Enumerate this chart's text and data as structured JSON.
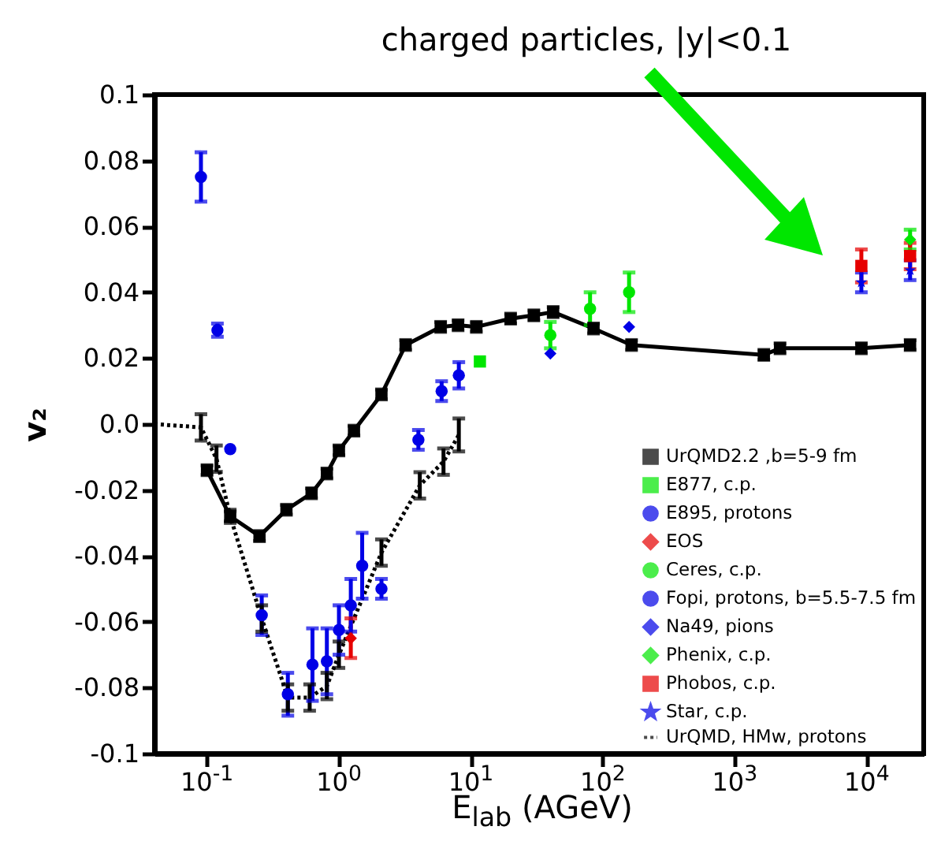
{
  "chart_data": {
    "type": "scatter",
    "title": "charged particles, |y|<0.1",
    "xlabel": "E$_{lab}$ (AGeV)",
    "ylabel": "v₂",
    "log": "x",
    "xlim": [
      0.04,
      27000
    ],
    "ylim": [
      -0.1,
      0.1
    ],
    "xticks": [
      {
        "value": 0.1,
        "label": "10$^{-1}$"
      },
      {
        "value": 1,
        "label": "10$^{0}$"
      },
      {
        "value": 10,
        "label": "10$^{1}$"
      },
      {
        "value": 100,
        "label": "10$^{2}$"
      },
      {
        "value": 1000,
        "label": "10$^{3}$"
      },
      {
        "value": 10000,
        "label": "10$^{4}$"
      }
    ],
    "yticks": [
      -0.1,
      -0.08,
      -0.06,
      -0.04,
      -0.02,
      {
        "value": 0,
        "label": "0.0"
      },
      0.02,
      0.04,
      0.06,
      0.08,
      0.1
    ],
    "legend": "bottom right",
    "series": [
      {
        "name": "UrQMD2.2 ,b=5-9 fm",
        "type": "line",
        "line_style": "solid",
        "marker": "square",
        "color": "#000000",
        "x": [
          0.1,
          0.15,
          0.25,
          0.4,
          0.62,
          0.81,
          1.0,
          1.3,
          2.1,
          3.2,
          5.9,
          8,
          11,
          20,
          30,
          42,
          85,
          165,
          1660,
          2200,
          9100,
          21300
        ],
        "values": [
          -0.014,
          -0.028,
          -0.034,
          -0.026,
          -0.021,
          -0.015,
          -0.008,
          -0.002,
          0.009,
          0.024,
          0.0295,
          0.03,
          0.0295,
          0.032,
          0.033,
          0.034,
          0.029,
          0.024,
          0.021,
          0.023,
          0.023,
          0.024
        ],
        "errors": [
          0.0015,
          0.0015,
          0.0015,
          0.0015,
          0.0015,
          0.0015,
          0.0015,
          0.0015,
          0.0015,
          0.0015,
          0.0015,
          0.0015,
          0.0015,
          0.0015,
          0.0015,
          0.0015,
          0.0015,
          0.0015,
          0.0015,
          0.0015,
          0.0015,
          0.0015
        ]
      },
      {
        "name": "E877, c.p.",
        "marker": "square",
        "color": "#00e600",
        "x": [
          11.7
        ],
        "values": [
          0.019
        ]
      },
      {
        "name": "E895, protons",
        "marker": "circle",
        "color": "#0000e6",
        "x": [
          2.1,
          4.0,
          6.0,
          8.1
        ],
        "values": [
          -0.05,
          -0.0048,
          0.01,
          0.0148
        ],
        "errors": [
          0.003,
          0.003,
          0.003,
          0.004
        ]
      },
      {
        "name": "EOS",
        "marker": "diamond",
        "color": "#e60000",
        "x": [
          1.23
        ],
        "values": [
          -0.065
        ],
        "errors": [
          0.006
        ]
      },
      {
        "name": "Ceres, c.p.",
        "marker": "circle",
        "color": "#00e600",
        "x": [
          40,
          80,
          158
        ],
        "values": [
          0.027,
          0.035,
          0.04
        ],
        "errors": [
          0.004,
          0.005,
          0.006
        ]
      },
      {
        "name": "Fopi, protons, b=5.5-7.5 fm",
        "marker": "circle",
        "color": "#0000e6",
        "x": [
          0.09,
          0.12,
          0.15,
          0.26,
          0.41,
          0.63,
          0.81,
          1.0,
          1.23,
          1.5
        ],
        "values": [
          0.075,
          0.0285,
          -0.0076,
          -0.058,
          -0.082,
          -0.073,
          -0.072,
          -0.0625,
          -0.055,
          -0.043
        ],
        "errors": [
          0.0075,
          0.002,
          null,
          0.006,
          0.0065,
          0.011,
          0.01,
          0.0075,
          0.008,
          0.01
        ]
      },
      {
        "name": "Na49, pions",
        "marker": "diamond",
        "color": "#0000e6",
        "x": [
          40,
          158
        ],
        "values": [
          0.0214,
          0.0295
        ]
      },
      {
        "name": "Phenix, c.p.",
        "marker": "diamond",
        "color": "#00e600",
        "x": [
          21300
        ],
        "values": [
          0.056
        ],
        "errors": [
          0.003
        ]
      },
      {
        "name": "Phobos, c.p.",
        "marker": "square",
        "color": "#e60000",
        "x": [
          9100,
          21300
        ],
        "values": [
          0.048,
          0.051
        ],
        "errors": [
          0.005,
          0.004
        ]
      },
      {
        "name": "Star, c.p.",
        "marker": "star",
        "color": "#0000e6",
        "x": [
          9100,
          21300
        ],
        "values": [
          0.043,
          0.0467
        ],
        "errors": [
          0.003,
          0.003
        ]
      },
      {
        "name": "UrQMD, HMw, protons",
        "type": "line",
        "line_style": "dotted",
        "marker": "none",
        "color": "#000000",
        "x": [
          0.04,
          0.09,
          0.118,
          0.15,
          0.26,
          0.41,
          0.6,
          0.81,
          1.0,
          2.1,
          4.1,
          6.2,
          8.1
        ],
        "values": [
          0,
          -0.001,
          -0.0105,
          -0.028,
          -0.059,
          -0.083,
          -0.083,
          -0.0795,
          -0.07,
          -0.039,
          -0.0186,
          -0.0114,
          -0.0033
        ],
        "errors": [
          null,
          0.004,
          0.004,
          0.002,
          0.004,
          0.004,
          0.004,
          0.004,
          0.004,
          0.004,
          0.004,
          0.004,
          0.005
        ]
      }
    ]
  }
}
